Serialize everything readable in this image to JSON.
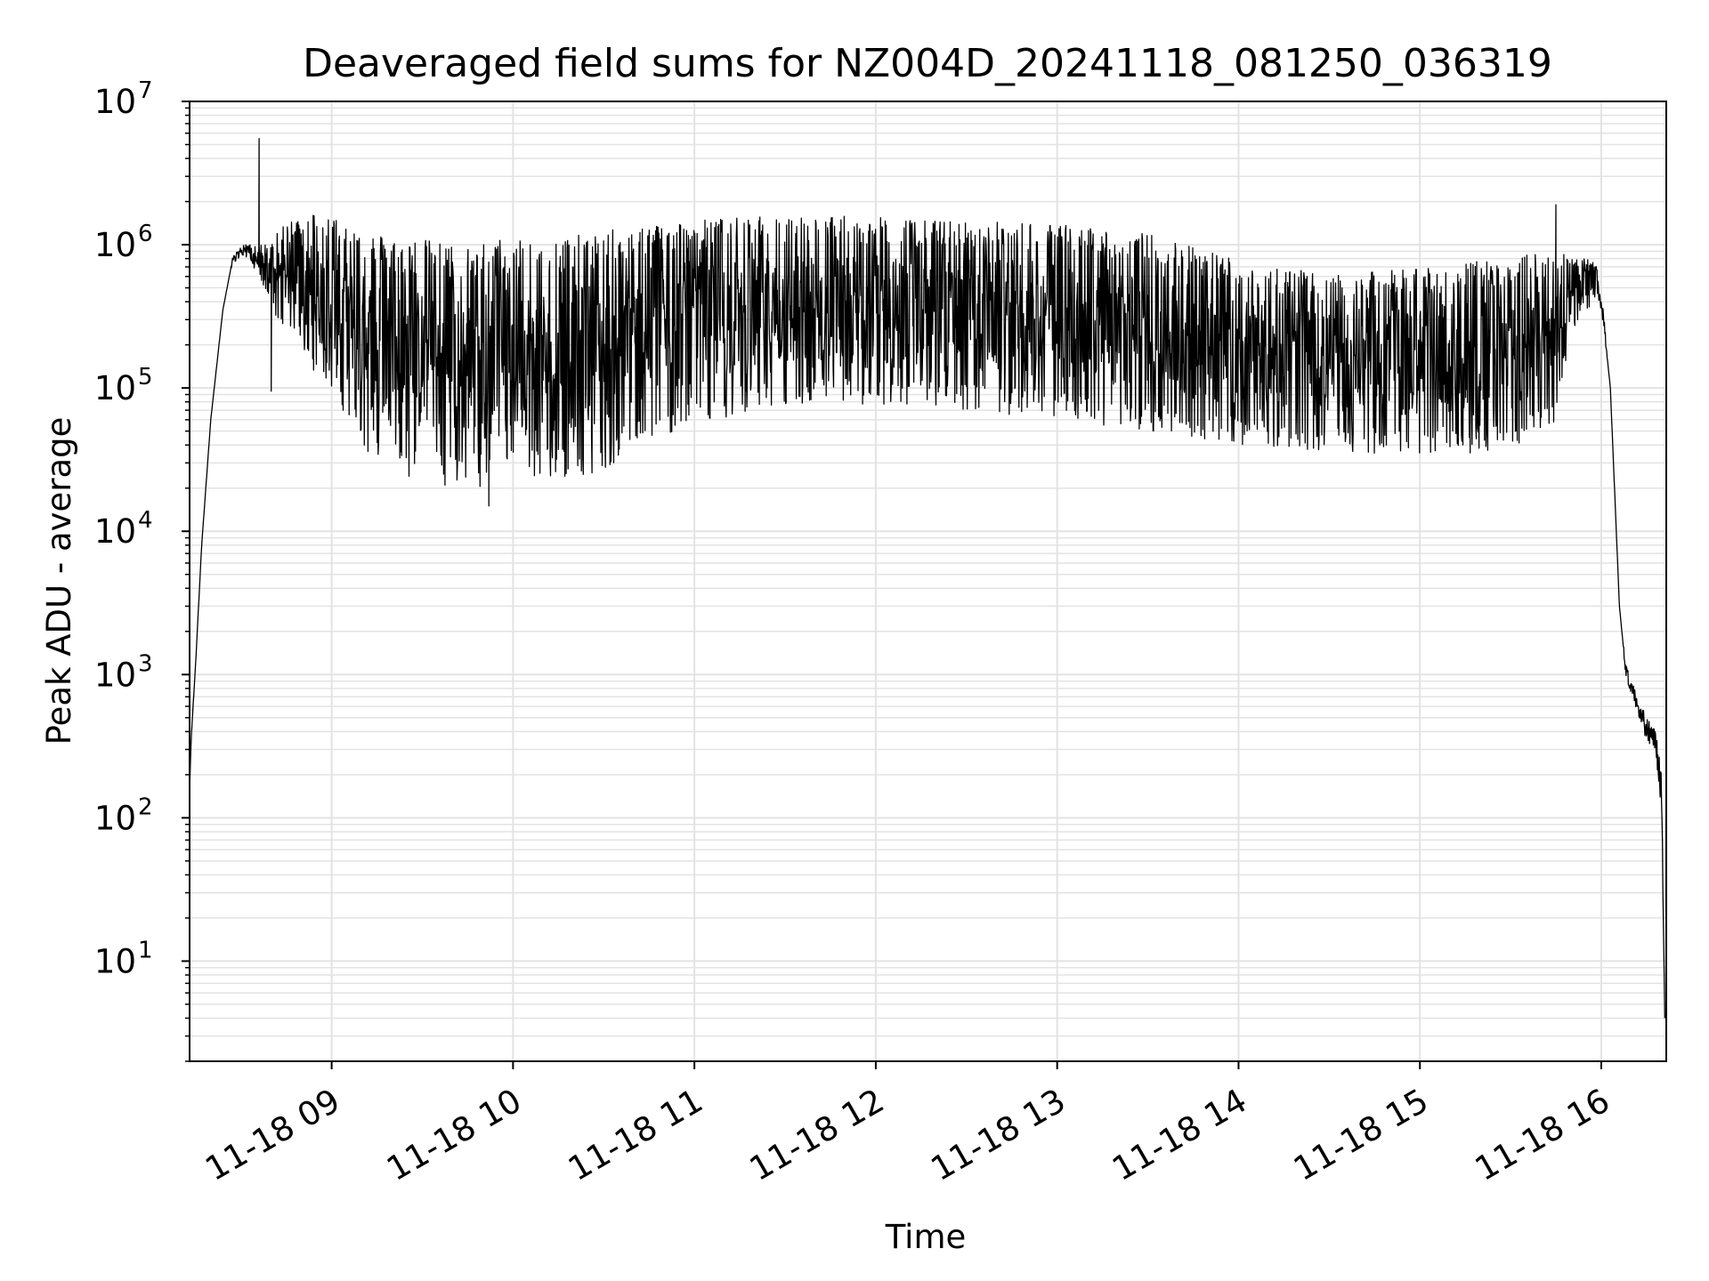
{
  "chart_data": {
    "type": "line",
    "title": "Deaveraged field sums for NZ004D_20241118_081250_036319",
    "xlabel": "Time",
    "ylabel": "Peak ADU - average",
    "yscale": "log",
    "ylim": [
      2,
      10000000
    ],
    "xlim": [
      "2024-11-18T08:13:00",
      "2024-11-18T16:21:30"
    ],
    "grid": true,
    "grid_color": "#e3e3e3",
    "line_color": "#000000",
    "x_ticks": [
      {
        "value": "2024-11-18T09:00:00",
        "label": "11-18 09"
      },
      {
        "value": "2024-11-18T10:00:00",
        "label": "11-18 10"
      },
      {
        "value": "2024-11-18T11:00:00",
        "label": "11-18 11"
      },
      {
        "value": "2024-11-18T12:00:00",
        "label": "11-18 12"
      },
      {
        "value": "2024-11-18T13:00:00",
        "label": "11-18 13"
      },
      {
        "value": "2024-11-18T14:00:00",
        "label": "11-18 14"
      },
      {
        "value": "2024-11-18T15:00:00",
        "label": "11-18 15"
      },
      {
        "value": "2024-11-18T16:00:00",
        "label": "11-18 16"
      }
    ],
    "y_ticks": [
      {
        "value": 10,
        "base": "10",
        "exp": "1"
      },
      {
        "value": 100,
        "base": "10",
        "exp": "2"
      },
      {
        "value": 1000,
        "base": "10",
        "exp": "3"
      },
      {
        "value": 10000,
        "base": "10",
        "exp": "4"
      },
      {
        "value": 100000,
        "base": "10",
        "exp": "5"
      },
      {
        "value": 1000000,
        "base": "10",
        "exp": "6"
      },
      {
        "value": 10000000,
        "base": "10",
        "exp": "7"
      }
    ],
    "series": [
      {
        "x": [
          "2024-11-18T08:13:00",
          "2024-11-18T08:13:30",
          "2024-11-18T08:15:00",
          "2024-11-18T08:17:00",
          "2024-11-18T08:20:00",
          "2024-11-18T08:24:00",
          "2024-11-18T08:27:00",
          "2024-11-18T08:30:00",
          "2024-11-18T08:33:00",
          "2024-11-18T08:37:00",
          "2024-11-18T08:42:00",
          "2024-11-18T08:46:00",
          "2024-11-18T08:48:00",
          "2024-11-18T08:49:00",
          "2024-11-18T08:50:00",
          "2024-11-18T08:52:00",
          "2024-11-18T08:54:00",
          "2024-11-18T08:57:00",
          "2024-11-18T09:00:00",
          "2024-11-18T09:05:00",
          "2024-11-18T09:10:00",
          "2024-11-18T09:15:00",
          "2024-11-18T09:20:00",
          "2024-11-18T09:25:00",
          "2024-11-18T09:30:00",
          "2024-11-18T09:35:00",
          "2024-11-18T09:40:00",
          "2024-11-18T09:45:00",
          "2024-11-18T09:50:00",
          "2024-11-18T09:55:00",
          "2024-11-18T10:00:00",
          "2024-11-18T10:05:00",
          "2024-11-18T10:10:00",
          "2024-11-18T10:15:00",
          "2024-11-18T10:20:00",
          "2024-11-18T10:25:00",
          "2024-11-18T10:30:00",
          "2024-11-18T10:40:00",
          "2024-11-18T10:50:00",
          "2024-11-18T11:00:00",
          "2024-11-18T11:15:00",
          "2024-11-18T11:30:00",
          "2024-11-18T11:45:00",
          "2024-11-18T12:00:00",
          "2024-11-18T12:15:00",
          "2024-11-18T12:30:00",
          "2024-11-18T12:45:00",
          "2024-11-18T12:58:00",
          "2024-11-18T13:00:00",
          "2024-11-18T13:15:00",
          "2024-11-18T13:30:00",
          "2024-11-18T13:45:00",
          "2024-11-18T14:00:00",
          "2024-11-18T14:15:00",
          "2024-11-18T14:30:00",
          "2024-11-18T14:45:00",
          "2024-11-18T15:00:00",
          "2024-11-18T15:15:00",
          "2024-11-18T15:30:00",
          "2024-11-18T15:40:00",
          "2024-11-18T15:45:00",
          "2024-11-18T15:50:00",
          "2024-11-18T15:55:00",
          "2024-11-18T15:58:00",
          "2024-11-18T16:00:00",
          "2024-11-18T16:03:00",
          "2024-11-18T16:06:00",
          "2024-11-18T16:08:00",
          "2024-11-18T16:10:00",
          "2024-11-18T16:12:00",
          "2024-11-18T16:15:00",
          "2024-11-18T16:18:00",
          "2024-11-18T16:20:00",
          "2024-11-18T16:21:00"
        ],
        "y_low": [
          150,
          350,
          1200,
          8000,
          60000,
          350000,
          700000,
          850000,
          800000,
          500000,
          300000,
          260000,
          240000,
          220000,
          200000,
          160000,
          130000,
          110000,
          90000,
          60000,
          40000,
          30000,
          25000,
          22000,
          22000,
          22000,
          20000,
          20000,
          20000,
          20000,
          20000,
          21000,
          22000,
          23000,
          24000,
          25000,
          27000,
          35000,
          45000,
          55000,
          65000,
          70000,
          75000,
          75000,
          72000,
          70000,
          65000,
          60000,
          60000,
          55000,
          50000,
          45000,
          40000,
          38000,
          36000,
          35000,
          34000,
          34000,
          38000,
          45000,
          60000,
          250000,
          350000,
          400000,
          350000,
          100000,
          3000,
          1000,
          700,
          500,
          350,
          250,
          100,
          4
        ],
        "y_high": [
          150,
          350,
          1200,
          8000,
          60000,
          350000,
          800000,
          1000000,
          1000000,
          1000000,
          1200000,
          1500000,
          1500000,
          1600000,
          1600000,
          1700000,
          1700000,
          1700000,
          1600000,
          1500000,
          1300000,
          1200000,
          1150000,
          1100000,
          1100000,
          1050000,
          1000000,
          1000000,
          1050000,
          1100000,
          1150000,
          1200000,
          1200000,
          1150000,
          1150000,
          1200000,
          1250000,
          1350000,
          1450000,
          1500000,
          1550000,
          1600000,
          1600000,
          1550000,
          1500000,
          1450000,
          1450000,
          1450000,
          1400000,
          1300000,
          1200000,
          1000000,
          800000,
          700000,
          600000,
          650000,
          700000,
          750000,
          800000,
          900000,
          1000000,
          800000,
          800000,
          750000,
          500000,
          100000,
          3000,
          1200,
          900,
          700,
          500,
          400,
          200,
          4
        ],
        "spikes": [
          {
            "x": "2024-11-18T08:36:00",
            "y": 5500000
          },
          {
            "x": "2024-11-18T08:40:00",
            "y": 95000
          },
          {
            "x": "2024-11-18T09:52:00",
            "y": 15000
          },
          {
            "x": "2024-11-18T15:45:00",
            "y": 1900000
          }
        ]
      }
    ]
  }
}
